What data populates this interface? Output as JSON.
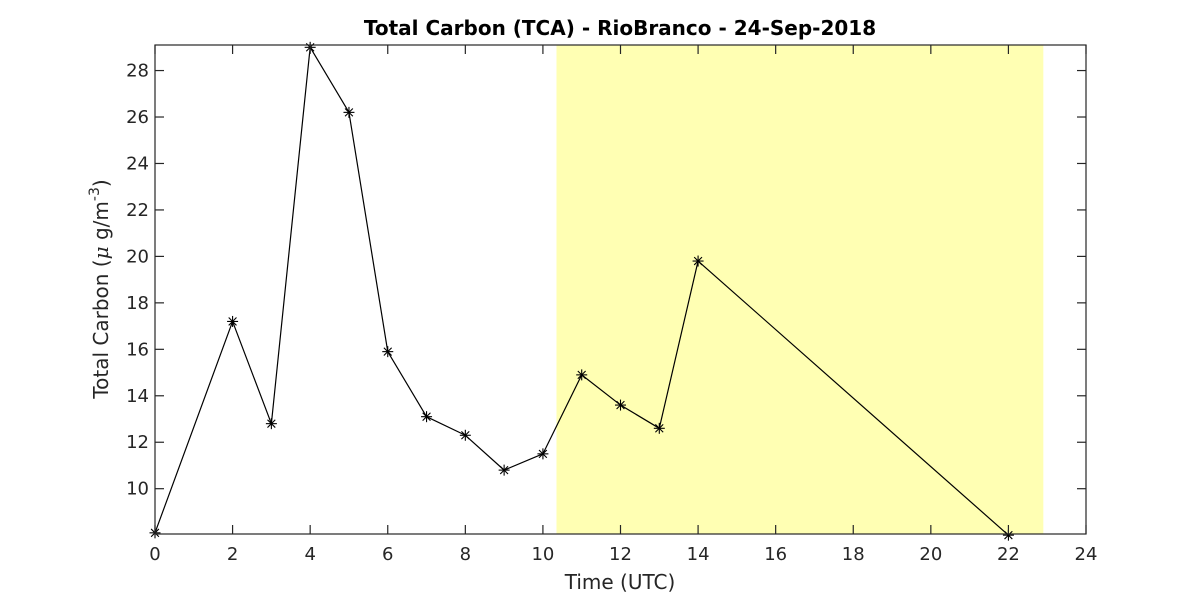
{
  "chart_data": {
    "type": "line",
    "title": "Total Carbon (TCA) - RioBranco - 24-Sep-2018",
    "xlabel": "Time (UTC)",
    "ylabel": {
      "prefix": "Total Carbon (",
      "mu": "μ",
      "unit": " g/m",
      "exponent": "-3",
      "suffix": ")"
    },
    "xlim": [
      0,
      24
    ],
    "ylim": [
      8.05,
      29.1
    ],
    "xticks": [
      "0",
      "2",
      "4",
      "6",
      "8",
      "10",
      "12",
      "14",
      "16",
      "18",
      "20",
      "22",
      "24"
    ],
    "yticks": [
      "10",
      "12",
      "14",
      "16",
      "18",
      "20",
      "22",
      "24",
      "26",
      "28"
    ],
    "grid": false,
    "highlight": {
      "x_start": 10.35,
      "x_end": 22.9,
      "color": "#ffffb3"
    },
    "series": [
      {
        "marker": "asterisk",
        "color": "#000000",
        "points": [
          [
            0,
            8.1
          ],
          [
            2,
            17.2
          ],
          [
            3,
            12.8
          ],
          [
            4,
            29.0
          ],
          [
            5,
            26.2
          ],
          [
            6,
            15.9
          ],
          [
            7,
            13.1
          ],
          [
            8,
            12.3
          ],
          [
            9,
            10.8
          ],
          [
            10,
            11.5
          ],
          [
            11,
            14.9
          ],
          [
            12,
            13.6
          ],
          [
            13,
            12.6
          ],
          [
            14,
            19.8
          ],
          [
            22,
            8.0
          ]
        ]
      }
    ]
  }
}
